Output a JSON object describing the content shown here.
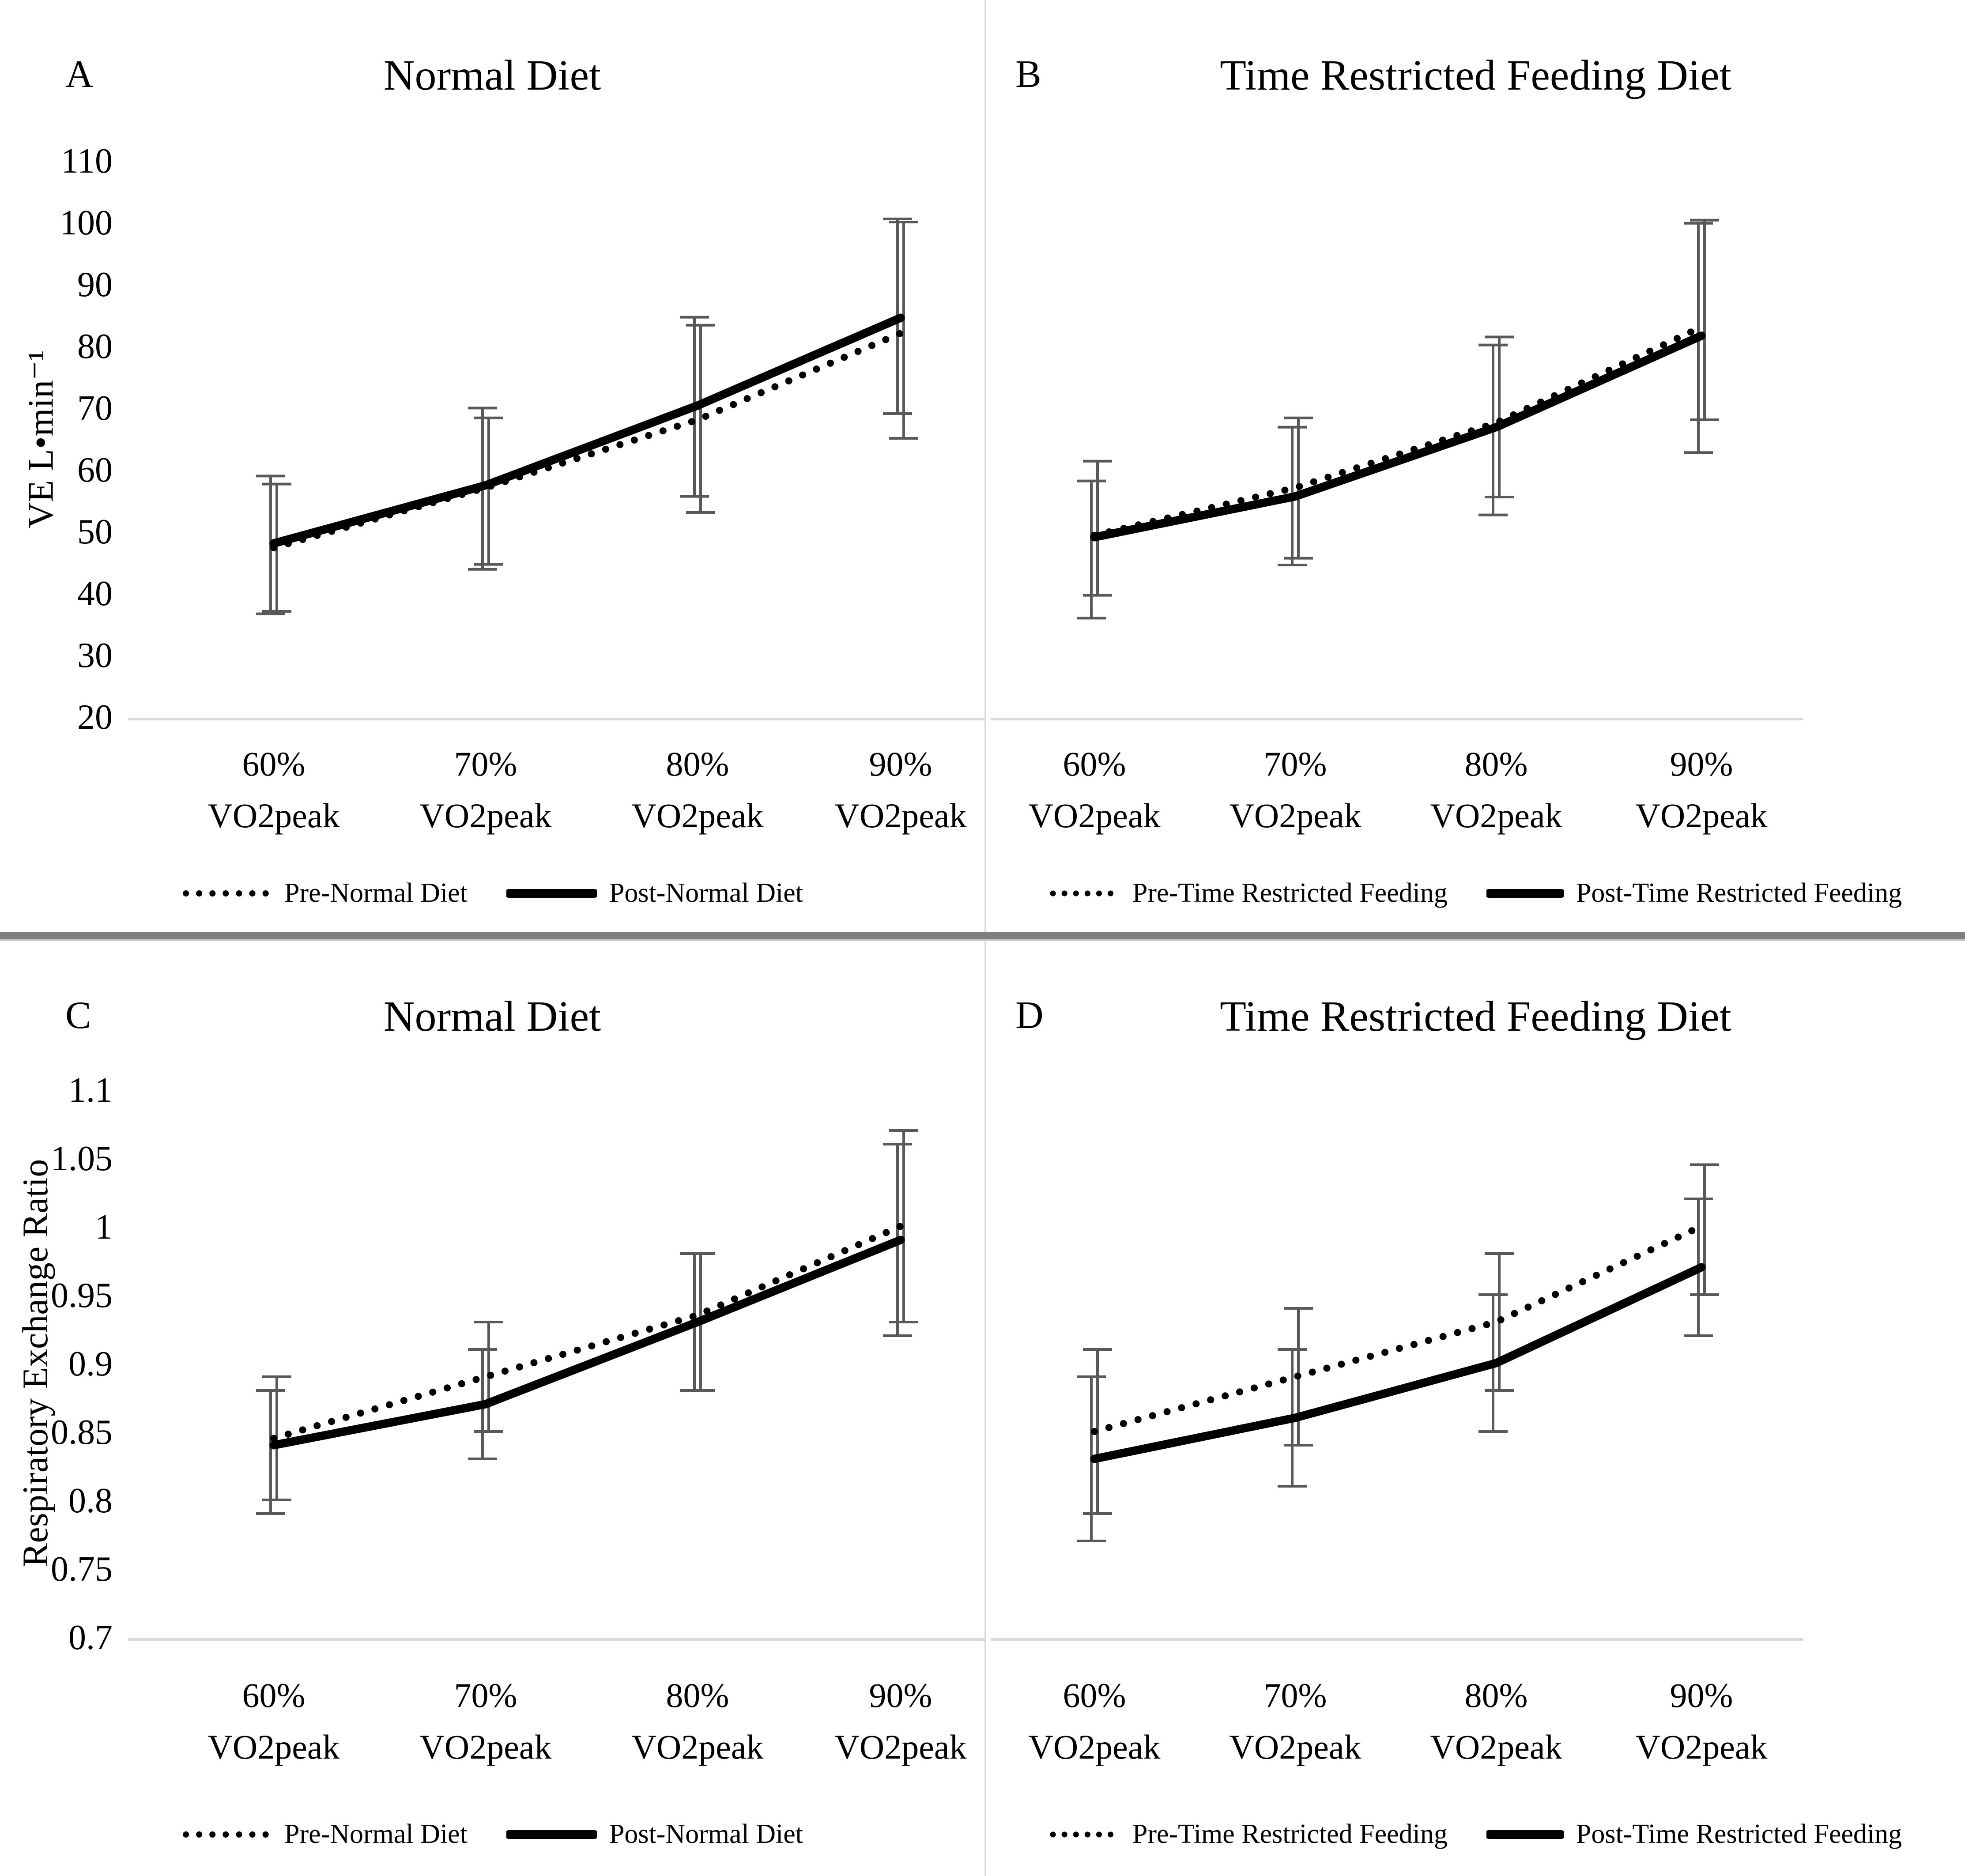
{
  "colors": {
    "line": "#000000",
    "error_bar": "#595959",
    "axis_baseline": "#d9d9d9",
    "divider": "#7f7f7f",
    "background": "#ffffff"
  },
  "chart_data": [
    {
      "type": "line",
      "panel_label": "A",
      "title": "Normal Diet",
      "ylabel": "VE L•min⁻¹",
      "ylim": [
        20,
        110
      ],
      "ytick_values": [
        110,
        100,
        90,
        80,
        70,
        60,
        50,
        40,
        30,
        20
      ],
      "ytick_labels": [
        "110",
        "100",
        "90",
        "80",
        "70",
        "60",
        "50",
        "40",
        "30",
        "20"
      ],
      "categories": [
        "60%",
        "70%",
        "80%",
        "90%"
      ],
      "category_line2": "VO2peak",
      "grid": false,
      "legend_position": "bottom",
      "series": [
        {
          "name": "Pre-Normal Diet",
          "style": "dotted",
          "values": [
            47.3,
            57.0,
            68.0,
            82.0
          ],
          "err_lo": [
            37.0,
            44.6,
            53.0,
            65.0
          ],
          "err_hi": [
            57.6,
            68.3,
            83.3,
            100.0
          ]
        },
        {
          "name": "Post-Normal Diet",
          "style": "solid",
          "values": [
            48.0,
            57.4,
            70.3,
            84.5
          ],
          "err_lo": [
            36.6,
            43.8,
            55.6,
            69.0
          ],
          "err_hi": [
            58.9,
            69.9,
            84.6,
            100.5
          ]
        }
      ],
      "layout": {
        "plot_top": 363,
        "plot_bottom": 1623,
        "tick_x": 255,
        "axis_x0": 290,
        "axis_x1": 2230,
        "x_centers": [
          620,
          1100,
          1580,
          2040
        ],
        "cat_y1": 1757,
        "cat_y2": 1874
      }
    },
    {
      "type": "line",
      "panel_label": "B",
      "title": "Time Restricted Feeding Diet",
      "ylabel": "",
      "ylim": [
        20,
        110
      ],
      "ytick_values": [
        110,
        100,
        90,
        80,
        70,
        60,
        50,
        40,
        30,
        20
      ],
      "ytick_labels": [],
      "categories": [
        "60%",
        "70%",
        "80%",
        "90%"
      ],
      "category_line2": "VO2peak",
      "grid": false,
      "legend_position": "bottom",
      "series": [
        {
          "name": "Pre-Time Restricted Feeding",
          "style": "dotted",
          "values": [
            49.3,
            57.0,
            67.5,
            83.0
          ],
          "err_lo": [
            39.6,
            45.6,
            55.5,
            68.0
          ],
          "err_hi": [
            61.3,
            68.3,
            81.4,
            100.3
          ]
        },
        {
          "name": "Post-Time Restricted Feeding",
          "style": "solid",
          "values": [
            49.0,
            55.6,
            66.8,
            81.6
          ],
          "err_lo": [
            35.9,
            44.5,
            52.6,
            62.7
          ],
          "err_hi": [
            58.1,
            66.8,
            80.1,
            99.8
          ]
        }
      ],
      "layout": {
        "plot_top": 363,
        "plot_bottom": 1623,
        "tick_x": 0,
        "axis_x0": 10,
        "axis_x1": 1850,
        "x_centers": [
          245,
          700,
          1155,
          1620
        ],
        "cat_y1": 1757,
        "cat_y2": 1874
      }
    },
    {
      "type": "line",
      "panel_label": "C",
      "title": "Normal Diet",
      "ylabel": "Respiratory Exchange Ratio",
      "ylim": [
        0.7,
        1.1
      ],
      "ytick_values": [
        1.1,
        1.05,
        1.0,
        0.95,
        0.9,
        0.85,
        0.8,
        0.75,
        0.7
      ],
      "ytick_labels": [
        "1.1",
        "1.05",
        "1",
        "0.95",
        "0.9",
        "0.85",
        "0.8",
        "0.75",
        "0.7"
      ],
      "categories": [
        "60%",
        "70%",
        "80%",
        "90%"
      ],
      "category_line2": "VO2peak",
      "grid": false,
      "legend_position": "bottom",
      "series": [
        {
          "name": "Pre-Normal Diet",
          "style": "dotted",
          "values": [
            0.845,
            0.89,
            0.935,
            1.0
          ],
          "err_lo": [
            0.8,
            0.85,
            0.88,
            0.93
          ],
          "err_hi": [
            0.89,
            0.93,
            0.98,
            1.07
          ]
        },
        {
          "name": "Post-Normal Diet",
          "style": "solid",
          "values": [
            0.84,
            0.87,
            0.93,
            0.99
          ],
          "err_lo": [
            0.79,
            0.83,
            0.88,
            0.92
          ],
          "err_hi": [
            0.88,
            0.91,
            0.98,
            1.06
          ]
        }
      ],
      "layout": {
        "plot_top": 336,
        "plot_bottom": 1576,
        "tick_x": 255,
        "axis_x0": 290,
        "axis_x1": 2230,
        "x_centers": [
          620,
          1100,
          1580,
          2040
        ],
        "cat_y1": 1735,
        "cat_y2": 1852
      }
    },
    {
      "type": "line",
      "panel_label": "D",
      "title": "Time Restricted Feeding Diet",
      "ylabel": "",
      "ylim": [
        0.7,
        1.1
      ],
      "ytick_values": [
        1.1,
        1.05,
        1.0,
        0.95,
        0.9,
        0.85,
        0.8,
        0.75,
        0.7
      ],
      "ytick_labels": [],
      "categories": [
        "60%",
        "70%",
        "80%",
        "90%"
      ],
      "category_line2": "VO2peak",
      "grid": false,
      "legend_position": "bottom",
      "series": [
        {
          "name": "Pre-Time Restricted Feeding",
          "style": "dotted",
          "values": [
            0.85,
            0.89,
            0.93,
            1.0
          ],
          "err_lo": [
            0.79,
            0.84,
            0.88,
            0.95
          ],
          "err_hi": [
            0.91,
            0.94,
            0.98,
            1.045
          ]
        },
        {
          "name": "Post-Time Restricted Feeding",
          "style": "solid",
          "values": [
            0.83,
            0.86,
            0.9,
            0.97
          ],
          "err_lo": [
            0.77,
            0.81,
            0.85,
            0.92
          ],
          "err_hi": [
            0.89,
            0.91,
            0.95,
            1.02
          ]
        }
      ],
      "layout": {
        "plot_top": 336,
        "plot_bottom": 1576,
        "tick_x": 0,
        "axis_x0": 10,
        "axis_x1": 1850,
        "x_centers": [
          245,
          700,
          1155,
          1620
        ],
        "cat_y1": 1735,
        "cat_y2": 1852
      }
    }
  ]
}
